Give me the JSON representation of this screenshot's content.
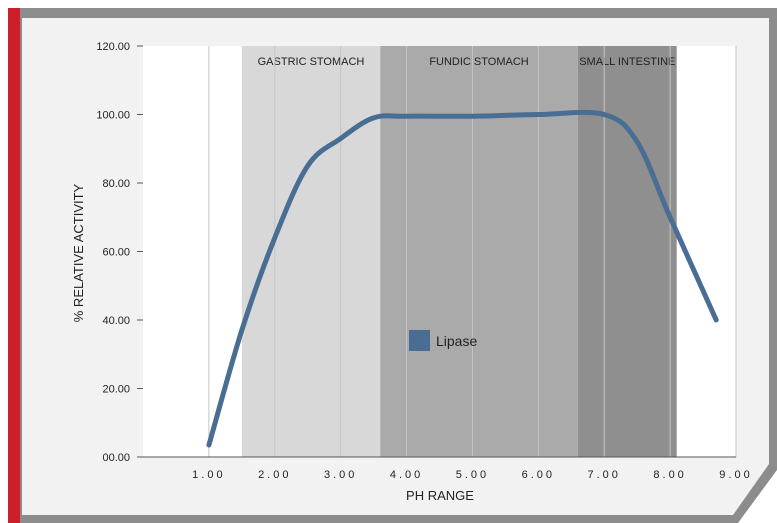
{
  "chart_data": {
    "type": "line",
    "xlabel": "PH RANGE",
    "ylabel": "% RELATIVE ACTIVITY",
    "xlim": [
      0,
      9
    ],
    "ylim": [
      0,
      120
    ],
    "x_ticks": [
      1,
      2,
      3,
      4,
      5,
      6,
      7,
      8,
      9
    ],
    "x_tick_labels": [
      "1.00",
      "2.00",
      "3.00",
      "4.00",
      "5.00",
      "6.00",
      "7.00",
      "8.00",
      "9.00"
    ],
    "y_ticks": [
      0,
      20,
      40,
      60,
      80,
      100,
      120
    ],
    "y_tick_labels": [
      "00.00",
      "20.00",
      "40.00",
      "60.00",
      "80.00",
      "100.00",
      "120.00"
    ],
    "grid": "vertical",
    "legend": "center",
    "bands": [
      {
        "label": "GASTRIC STOMACH",
        "x_start": 1.5,
        "x_end": 3.6,
        "color": "#d8d8d8"
      },
      {
        "label": "FUNDIC STOMACH",
        "x_start": 3.6,
        "x_end": 6.6,
        "color": "#aaaaaa"
      },
      {
        "label": "SMALL INTESTINE",
        "x_start": 6.6,
        "x_end": 8.1,
        "color": "#8f8f8f"
      }
    ],
    "series": [
      {
        "name": "Lipase",
        "color": "#4a6e93",
        "x": [
          1.0,
          1.5,
          2.0,
          2.5,
          3.0,
          3.5,
          4.0,
          5.0,
          6.0,
          7.0,
          7.5,
          8.0,
          8.7
        ],
        "y": [
          3.5,
          37,
          64,
          85,
          93,
          99,
          99.5,
          99.5,
          100,
          100,
          92,
          70,
          40
        ]
      }
    ]
  }
}
